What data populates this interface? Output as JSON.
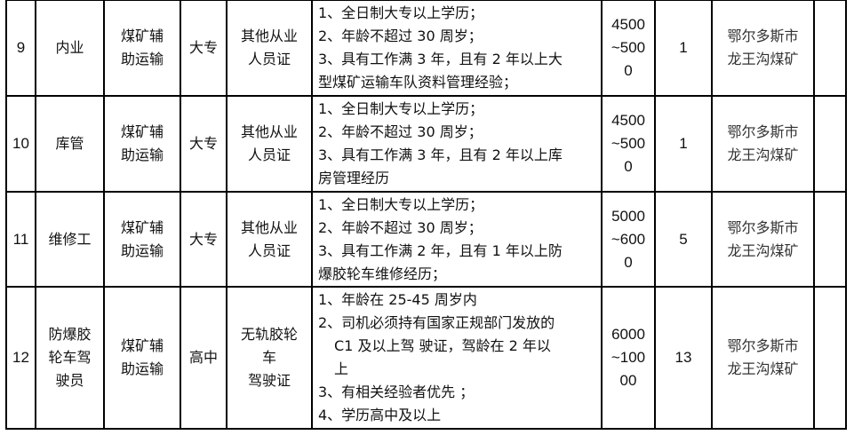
{
  "rows": [
    {
      "no": "9",
      "position": "内业",
      "category": [
        "煤矿辅",
        "助运输"
      ],
      "education": "大专",
      "certificate": [
        "其他从业",
        "人员证"
      ],
      "requirements": [
        {
          "t": "1、全日制大专以上学历；"
        },
        {
          "t": "2、年龄不超过 30 周岁；"
        },
        {
          "t": "3、具有工作满 3 年，且有 2 年以上大"
        },
        {
          "t": "型煤矿运输车队资料管理经验；"
        }
      ],
      "salary": [
        "4500",
        "~500",
        "0"
      ],
      "count": "1",
      "location": [
        "鄂尔多斯市",
        "龙王沟煤矿"
      ],
      "note": ""
    },
    {
      "no": "10",
      "position": "库管",
      "category": [
        "煤矿辅",
        "助运输"
      ],
      "education": "大专",
      "certificate": [
        "其他从业",
        "人员证"
      ],
      "requirements": [
        {
          "t": "1、全日制大专以上学历；"
        },
        {
          "t": "2、年龄不超过 30 周岁；"
        },
        {
          "t": "3、具有工作满 3 年，且有 2 年以上库"
        },
        {
          "t": "房管理经历"
        }
      ],
      "salary": [
        "4500",
        "~500",
        "0"
      ],
      "count": "1",
      "location": [
        "鄂尔多斯市",
        "龙王沟煤矿"
      ],
      "note": ""
    },
    {
      "no": "11",
      "position": "维修工",
      "category": [
        "煤矿辅",
        "助运输"
      ],
      "education": "大专",
      "certificate": [
        "其他从业",
        "人员证"
      ],
      "requirements": [
        {
          "t": "1、全日制大专以上学历；"
        },
        {
          "t": "2、年龄不超过 30 周岁；"
        },
        {
          "t": "3、具有工作满 2 年，且有 1 年以上防"
        },
        {
          "t": "爆胶轮车维修经历；"
        }
      ],
      "salary": [
        "5000",
        "~600",
        "0"
      ],
      "count": "5",
      "location": [
        "鄂尔多斯市",
        "龙王沟煤矿"
      ],
      "note": ""
    },
    {
      "no": "12",
      "position": "防爆胶\n轮车驾\n驶员",
      "category": [
        "煤矿辅",
        "助运输"
      ],
      "education": "高中",
      "certificate": [
        "无轨胶轮",
        "车",
        "驾驶证"
      ],
      "requirements": [
        {
          "t": "1、年龄在 25-45 周岁内"
        },
        {
          "t": "2、司机必须持有国家正规部门发放的"
        },
        {
          "t": "C1 及以上驾 驶证，驾龄在 2 年以",
          "indent": true
        },
        {
          "t": "上",
          "indent": true
        },
        {
          "t": "3、有相关经验者优先 ；"
        },
        {
          "t": "4、学历高中及以上"
        }
      ],
      "salary": [
        "6000",
        "~100",
        "00"
      ],
      "count": "13",
      "location": [
        "鄂尔多斯市",
        "龙王沟煤矿"
      ],
      "note": ""
    }
  ]
}
